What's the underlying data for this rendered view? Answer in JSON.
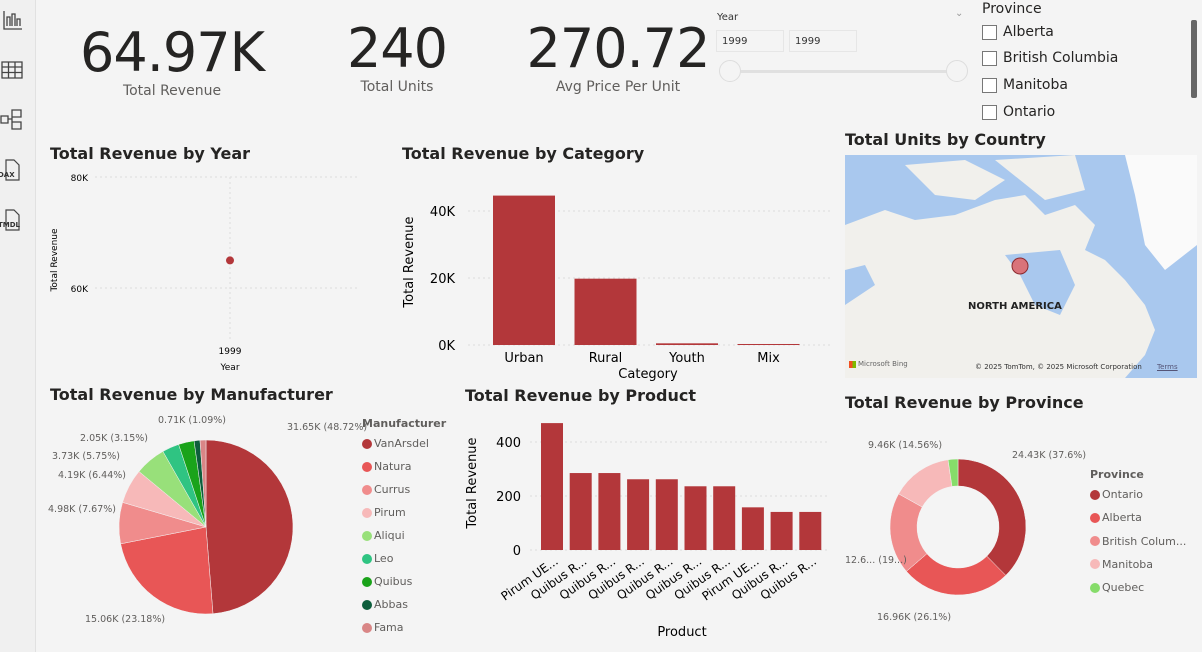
{
  "sidebar": {
    "items": [
      {
        "icon": "report-view-icon"
      },
      {
        "icon": "table-view-icon"
      },
      {
        "icon": "model-view-icon"
      },
      {
        "icon": "dax-query-icon",
        "label": "DAX"
      },
      {
        "icon": "tmdl-view-icon",
        "label": "TMDL"
      }
    ]
  },
  "kpis": [
    {
      "value": "64.97K",
      "label": "Total Revenue"
    },
    {
      "value": "240",
      "label": "Total Units"
    },
    {
      "value": "270.72",
      "label": "Avg Price Per Unit"
    }
  ],
  "year_slicer": {
    "label": "Year",
    "from": "1999",
    "to": "1999"
  },
  "province_slicer": {
    "label": "Province",
    "items": [
      "Alberta",
      "British Columbia",
      "Manitoba",
      "Ontario"
    ]
  },
  "map": {
    "title": "Total Units by Country",
    "region_label": "NORTH AMERICA",
    "brand": "Microsoft Bing",
    "copyright": "© 2025 TomTom, © 2025 Microsoft Corporation",
    "terms": "Terms",
    "bubble_color": "#c0504d"
  },
  "colors": {
    "accent": "#b3373a"
  },
  "chart_data": [
    {
      "id": "year",
      "type": "scatter",
      "title": "Total Revenue by Year",
      "xlabel": "Year",
      "ylabel": "Total Revenue",
      "x": [
        1999
      ],
      "y": [
        64970
      ],
      "xticks": [
        "1999"
      ],
      "yticks": [
        "60K",
        "80K"
      ],
      "ylim": [
        55000,
        82000
      ],
      "grid": true
    },
    {
      "id": "category",
      "type": "bar",
      "title": "Total Revenue by Category",
      "xlabel": "Category",
      "ylabel": "Total Revenue",
      "categories": [
        "Urban",
        "Rural",
        "Youth",
        "Mix"
      ],
      "values": [
        44600,
        19800,
        500,
        300
      ],
      "yticks": [
        "0K",
        "20K",
        "40K"
      ],
      "ylim": [
        0,
        48000
      ],
      "grid": true
    },
    {
      "id": "manufacturer",
      "type": "pie",
      "title": "Total Revenue by Manufacturer",
      "legend_title": "Manufacturer",
      "legend": "right",
      "categories": [
        "VanArsdel",
        "Natura",
        "Currus",
        "Pirum",
        "Aliqui",
        "Leo",
        "Quibus",
        "Abbas",
        "Fama"
      ],
      "values": [
        48.72,
        23.18,
        7.67,
        6.44,
        5.75,
        3.15,
        2.9,
        1.09,
        1.1
      ],
      "labels": [
        "31.65K (48.72%)",
        "15.06K (23.18%)",
        "4.98K (7.67%)",
        "4.19K (6.44%)",
        "3.73K (5.75%)",
        "2.05K (3.15%)",
        "",
        "0.71K (1.09%)",
        ""
      ],
      "colors": [
        "#b3373a",
        "#e85656",
        "#f08c8c",
        "#f7b9b9",
        "#98e07a",
        "#2fc482",
        "#1aa31a",
        "#0d5e3c",
        "#d98686"
      ]
    },
    {
      "id": "product",
      "type": "bar",
      "title": "Total Revenue by Product",
      "xlabel": "Product",
      "ylabel": "Total Revenue",
      "categories": [
        "Pirum UE...",
        "Quibus R...",
        "Quibus R...",
        "Quibus R...",
        "Quibus R...",
        "Quibus R...",
        "Quibus R...",
        "Pirum UE...",
        "Quibus R...",
        "Quibus R..."
      ],
      "values": [
        470,
        285,
        285,
        262,
        262,
        236,
        236,
        158,
        141,
        141
      ],
      "yticks": [
        "0",
        "200",
        "400"
      ],
      "ylim": [
        0,
        480
      ],
      "grid": true
    },
    {
      "id": "province",
      "type": "donut",
      "title": "Total Revenue by Province",
      "legend_title": "Province",
      "legend": "right",
      "categories": [
        "Ontario",
        "Alberta",
        "British Colum...",
        "Manitoba",
        "Quebec"
      ],
      "values": [
        37.6,
        26.1,
        19.4,
        14.56,
        2.34
      ],
      "labels": [
        "24.43K (37.6%)",
        "16.96K (26.1%)",
        "12.6... (19...)",
        "9.46K (14.56%)",
        ""
      ],
      "colors": [
        "#b3373a",
        "#e85656",
        "#f08c8c",
        "#f7b9b9",
        "#86dc6a"
      ]
    }
  ]
}
